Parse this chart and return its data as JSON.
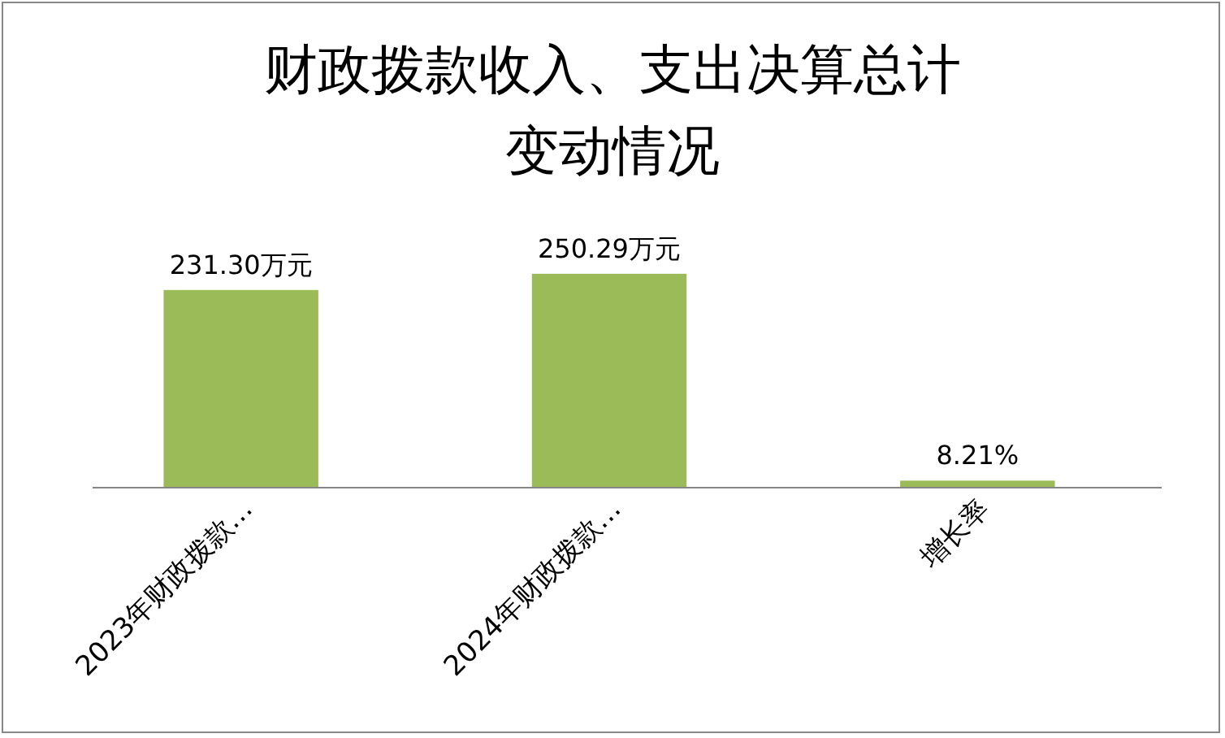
{
  "chart_data": {
    "type": "bar",
    "title": "财政拨款收入、支出决算总计变动情况",
    "categories": [
      "2023年财政拨款…",
      "2024年财政拨款…",
      "增长率"
    ],
    "values": [
      231.3,
      250.29,
      8.21
    ],
    "value_labels": [
      "231.30万元",
      "250.29万元",
      "8.21%"
    ],
    "color": "#9bbb59",
    "grid": false
  }
}
